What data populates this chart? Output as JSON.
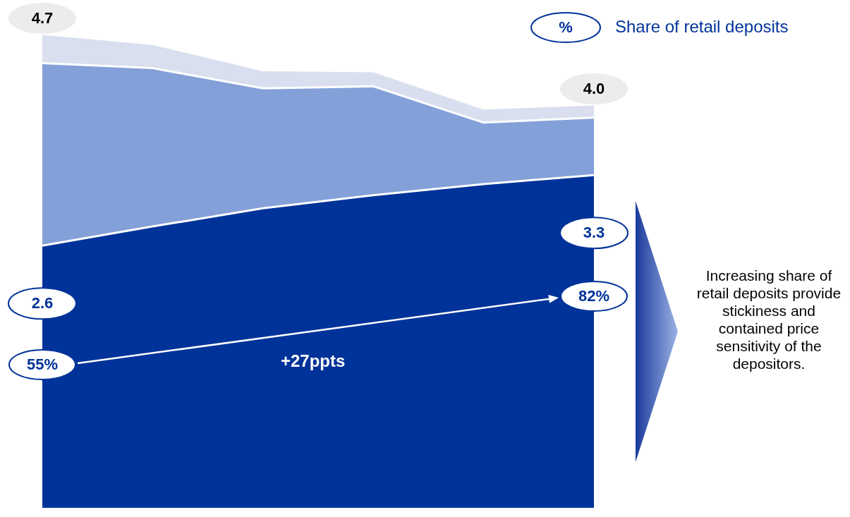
{
  "chart_data": {
    "type": "area",
    "stacked": true,
    "categories": [
      null,
      null,
      null,
      null,
      null,
      null
    ],
    "series": [
      {
        "color": "#003399",
        "values": [
          2.6,
          2.79,
          2.97,
          3.1,
          3.21,
          3.3
        ],
        "value_labels": [
          "2.6",
          null,
          null,
          null,
          null,
          "3.3"
        ]
      },
      {
        "color": "#84a0d9",
        "values": [
          1.81,
          1.57,
          1.19,
          1.08,
          0.61,
          0.57
        ]
      },
      {
        "color": "#d9dfee",
        "values": [
          0.29,
          0.24,
          0.18,
          0.15,
          0.14,
          0.13
        ]
      }
    ],
    "totals": [
      "4.7",
      null,
      null,
      null,
      null,
      "4.0"
    ],
    "grid": false,
    "legend": false,
    "annotations": [
      "%",
      "Share of retail deposits",
      "55%",
      "82%",
      "+27ppts",
      "Increasing share of retail deposits provide stickiness and contained price sensitivity of the depositors."
    ]
  }
}
